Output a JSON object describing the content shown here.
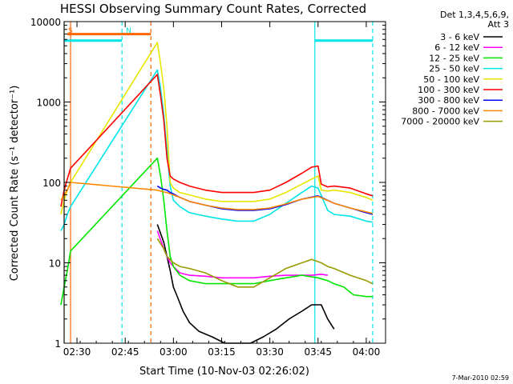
{
  "chart_data": {
    "type": "line",
    "title": "HESSI Observing Summary Count Rates, Corrected",
    "xlabel": "Start Time (10-Nov-03 02:26:02)",
    "ylabel": "Corrected Count Rate (s⁻¹ detector⁻¹)",
    "y_scale": "log",
    "ylim": [
      1,
      10000
    ],
    "xlim": [
      "02:26",
      "04:06"
    ],
    "x_ticks": [
      "02:30",
      "02:45",
      "03:00",
      "03:15",
      "03:30",
      "03:45",
      "04:00"
    ],
    "y_ticks": [
      "1",
      "10",
      "100",
      "1000",
      "10000"
    ],
    "legend_header": [
      "Det 1,3,4,5,6,9,",
      "Att 3"
    ],
    "legend_position": "right",
    "footer": "7-Mar-2010 02:59",
    "markers": [
      {
        "time": "02:26",
        "style": "solid",
        "color": "#00e5e5"
      },
      {
        "time": "02:44",
        "style": "dashed",
        "color": "#00e5e5",
        "label": "N"
      },
      {
        "time": "02:26",
        "style": "solid",
        "color": "#ff6600",
        "label": "S"
      },
      {
        "time": "02:28",
        "style": "solid",
        "color": "#ff6600"
      },
      {
        "time": "02:53",
        "style": "dashed",
        "color": "#ff6600"
      },
      {
        "time": "03:44",
        "style": "solid",
        "color": "#00e5e5"
      },
      {
        "time": "04:02",
        "style": "dashed",
        "color": "#00e5e5"
      }
    ],
    "bars": [
      {
        "start": "02:26",
        "end": "02:44",
        "value": 5800,
        "color": "#00e5e5"
      },
      {
        "start": "02:27",
        "end": "02:53",
        "value": 7000,
        "color": "#ff6600"
      },
      {
        "start": "03:44",
        "end": "04:02",
        "value": 5800,
        "color": "#00e5e5"
      }
    ],
    "series": [
      {
        "name": "3 - 6 keV",
        "color": "#000000",
        "x": [
          "02:55",
          "02:57",
          "02:58",
          "02:59",
          "03:00",
          "03:01",
          "03:03",
          "03:05",
          "03:08",
          "03:12",
          "03:16",
          "03:20",
          "03:24",
          "03:28",
          "03:32",
          "03:36",
          "03:40",
          "03:43",
          "03:46",
          "03:48",
          "03:50"
        ],
        "y": [
          30,
          18,
          12,
          8,
          5,
          4,
          2.5,
          1.8,
          1.4,
          1.2,
          1,
          1,
          1,
          1.2,
          1.5,
          2,
          2.5,
          3,
          3,
          2,
          1.5
        ]
      },
      {
        "name": "6 - 12 keV",
        "color": "#ff00ff",
        "x": [
          "02:55",
          "02:57",
          "02:58",
          "02:59",
          "03:00",
          "03:02",
          "03:05",
          "03:10",
          "03:15",
          "03:20",
          "03:25",
          "03:30",
          "03:35",
          "03:40",
          "03:43",
          "03:46",
          "03:48"
        ],
        "y": [
          25,
          15,
          12,
          10,
          9,
          7.5,
          7,
          6.8,
          6.5,
          6.5,
          6.5,
          6.8,
          7,
          7,
          7,
          7.2,
          7
        ]
      },
      {
        "name": "12 - 25 keV",
        "color": "#00e600",
        "x": [
          "02:25",
          "02:26",
          "02:27",
          "02:28",
          "02:55",
          "02:56",
          "02:57",
          "02:58",
          "02:59",
          "03:00",
          "03:02",
          "03:05",
          "03:10",
          "03:15",
          "03:20",
          "03:25",
          "03:30",
          "03:35",
          "03:40",
          "03:45",
          "03:48",
          "03:50",
          "03:53",
          "03:56",
          "04:00",
          "04:02"
        ],
        "y": [
          3,
          5,
          8,
          14,
          200,
          120,
          60,
          25,
          12,
          9,
          7,
          6,
          5.5,
          5.5,
          5.5,
          5.5,
          6,
          6.5,
          7,
          6.5,
          6,
          5.5,
          5,
          4,
          3.8,
          3.8
        ]
      },
      {
        "name": "25 - 50 keV",
        "color": "#00e5e5",
        "x": [
          "02:25",
          "02:26",
          "02:27",
          "02:28",
          "02:55",
          "02:56",
          "02:57",
          "02:58",
          "02:59",
          "03:00",
          "03:02",
          "03:05",
          "03:10",
          "03:15",
          "03:20",
          "03:25",
          "03:30",
          "03:35",
          "03:40",
          "03:43",
          "03:45",
          "03:48",
          "03:50",
          "03:55",
          "04:00",
          "04:02"
        ],
        "y": [
          25,
          30,
          40,
          50,
          2500,
          1500,
          700,
          250,
          90,
          60,
          50,
          42,
          38,
          35,
          33,
          33,
          40,
          55,
          75,
          90,
          85,
          45,
          40,
          38,
          33,
          32
        ]
      },
      {
        "name": "50 - 100 keV",
        "color": "#e6e600",
        "x": [
          "02:25",
          "02:26",
          "02:27",
          "02:28",
          "02:55",
          "02:56",
          "02:57",
          "02:58",
          "02:59",
          "03:00",
          "03:02",
          "03:05",
          "03:10",
          "03:15",
          "03:20",
          "03:25",
          "03:30",
          "03:35",
          "03:40",
          "03:43",
          "03:45",
          "03:46",
          "03:48",
          "03:50",
          "03:55",
          "04:00",
          "04:02"
        ],
        "y": [
          40,
          60,
          80,
          100,
          5500,
          3000,
          1500,
          500,
          100,
          85,
          75,
          70,
          62,
          58,
          58,
          58,
          62,
          75,
          95,
          110,
          120,
          80,
          78,
          80,
          75,
          65,
          60
        ]
      },
      {
        "name": "100 - 300 keV",
        "color": "#ff0000",
        "x": [
          "02:25",
          "02:26",
          "02:27",
          "02:28",
          "02:55",
          "02:56",
          "02:57",
          "02:58",
          "02:59",
          "03:00",
          "03:02",
          "03:05",
          "03:10",
          "03:15",
          "03:20",
          "03:25",
          "03:30",
          "03:35",
          "03:40",
          "03:43",
          "03:45",
          "03:46",
          "03:48",
          "03:50",
          "03:55",
          "04:00",
          "04:02"
        ],
        "y": [
          50,
          80,
          110,
          150,
          2200,
          1200,
          600,
          200,
          120,
          110,
          100,
          90,
          80,
          75,
          75,
          75,
          80,
          100,
          130,
          155,
          160,
          95,
          88,
          90,
          85,
          72,
          68
        ]
      },
      {
        "name": "300 - 800 keV",
        "color": "#0000ff",
        "x": [
          "02:55",
          "02:56",
          "02:57",
          "02:58",
          "02:59",
          "03:00",
          "03:02",
          "03:05",
          "03:10",
          "03:15",
          "03:20",
          "03:25",
          "03:30",
          "03:35",
          "03:40",
          "03:45",
          "03:50",
          "03:55",
          "04:00",
          "04:02"
        ],
        "y": [
          90,
          85,
          82,
          80,
          75,
          72,
          65,
          58,
          52,
          47,
          45,
          45,
          47,
          53,
          62,
          68,
          55,
          48,
          42,
          40
        ]
      },
      {
        "name": "800 - 7000 keV",
        "color": "#ff8800",
        "x": [
          "02:25",
          "02:26",
          "02:27",
          "02:28",
          "02:55",
          "02:56",
          "02:57",
          "02:58",
          "02:59",
          "03:00",
          "03:02",
          "03:05",
          "03:10",
          "03:15",
          "03:20",
          "03:25",
          "03:30",
          "03:35",
          "03:40",
          "03:45",
          "03:50",
          "03:55",
          "04:00",
          "04:02"
        ],
        "y": [
          60,
          70,
          80,
          100,
          80,
          78,
          76,
          75,
          72,
          70,
          65,
          58,
          52,
          48,
          46,
          46,
          48,
          54,
          62,
          67,
          55,
          48,
          43,
          41
        ]
      },
      {
        "name": "7000 - 20000 keV",
        "color": "#999900",
        "x": [
          "02:55",
          "02:57",
          "02:58",
          "03:00",
          "03:02",
          "03:05",
          "03:10",
          "03:15",
          "03:20",
          "03:25",
          "03:30",
          "03:35",
          "03:40",
          "03:43",
          "03:46",
          "03:48",
          "03:50",
          "03:55",
          "04:00",
          "04:02"
        ],
        "y": [
          20,
          15,
          12,
          10,
          9,
          8.5,
          7.5,
          6,
          5,
          5,
          6.5,
          8.5,
          10,
          11,
          10,
          9,
          8.5,
          7,
          6,
          5.5
        ]
      }
    ]
  }
}
